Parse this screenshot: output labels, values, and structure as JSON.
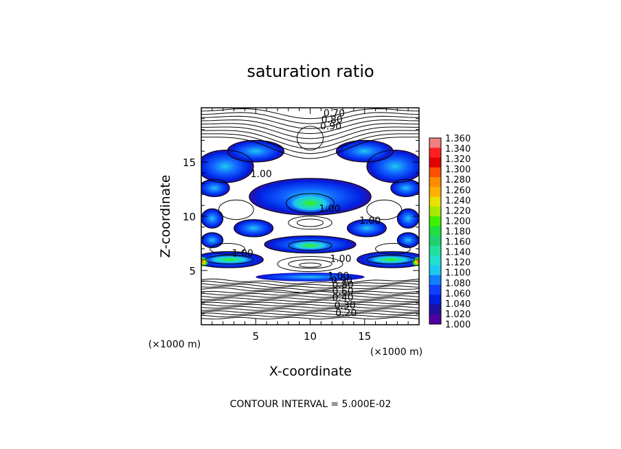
{
  "chart_data": {
    "type": "heatmap",
    "title": "saturation ratio",
    "xlabel": "X-coordinate",
    "ylabel": "Z-coordinate",
    "x_unit": "(×1000 m)",
    "z_unit": "(×1000 m)",
    "xlim": [
      0,
      20
    ],
    "ylim": [
      0,
      20
    ],
    "x_ticks": [
      "5",
      "10",
      "15"
    ],
    "y_ticks": [
      "5",
      "10",
      "15"
    ],
    "footer": "CONTOUR INTERVAL = 5.000E-02",
    "colorbar": {
      "min": 1.0,
      "max": 1.36,
      "labels": [
        "1.360",
        "1.340",
        "1.320",
        "1.300",
        "1.280",
        "1.260",
        "1.240",
        "1.220",
        "1.200",
        "1.180",
        "1.160",
        "1.140",
        "1.120",
        "1.100",
        "1.080",
        "1.060",
        "1.040",
        "1.020",
        "1.000"
      ],
      "colors": [
        "#f08080",
        "#ff2020",
        "#e00000",
        "#ff5000",
        "#ff8c00",
        "#ffb000",
        "#e8e000",
        "#a8e800",
        "#40f000",
        "#20e040",
        "#20d070",
        "#20e0a0",
        "#20e0d0",
        "#20c8f0",
        "#1080ff",
        "#1040ff",
        "#0020e0",
        "#2010a0",
        "#5000a0"
      ]
    },
    "contour_labels": [
      {
        "text": "0.70",
        "x": 12.2,
        "z": 19.2
      },
      {
        "text": "0.80",
        "x": 12.0,
        "z": 18.6
      },
      {
        "text": "0.90",
        "x": 11.9,
        "z": 18.0
      },
      {
        "text": "1.00",
        "x": 5.5,
        "z": 13.6
      },
      {
        "text": "1.00",
        "x": 11.8,
        "z": 10.4
      },
      {
        "text": "1.00",
        "x": 15.5,
        "z": 9.3
      },
      {
        "text": "1.00",
        "x": 3.8,
        "z": 6.3
      },
      {
        "text": "1.00",
        "x": 12.8,
        "z": 5.8
      },
      {
        "text": "1.00",
        "x": 12.6,
        "z": 4.2
      },
      {
        "text": "0.90",
        "x": 12.9,
        "z": 3.8
      },
      {
        "text": "0.80",
        "x": 13.0,
        "z": 3.4
      },
      {
        "text": "0.60",
        "x": 13.0,
        "z": 2.8
      },
      {
        "text": "0.40",
        "x": 13.0,
        "z": 2.2
      },
      {
        "text": "0.30",
        "x": 13.2,
        "z": 1.5
      },
      {
        "text": "0.20",
        "x": 13.3,
        "z": 0.8
      }
    ]
  }
}
